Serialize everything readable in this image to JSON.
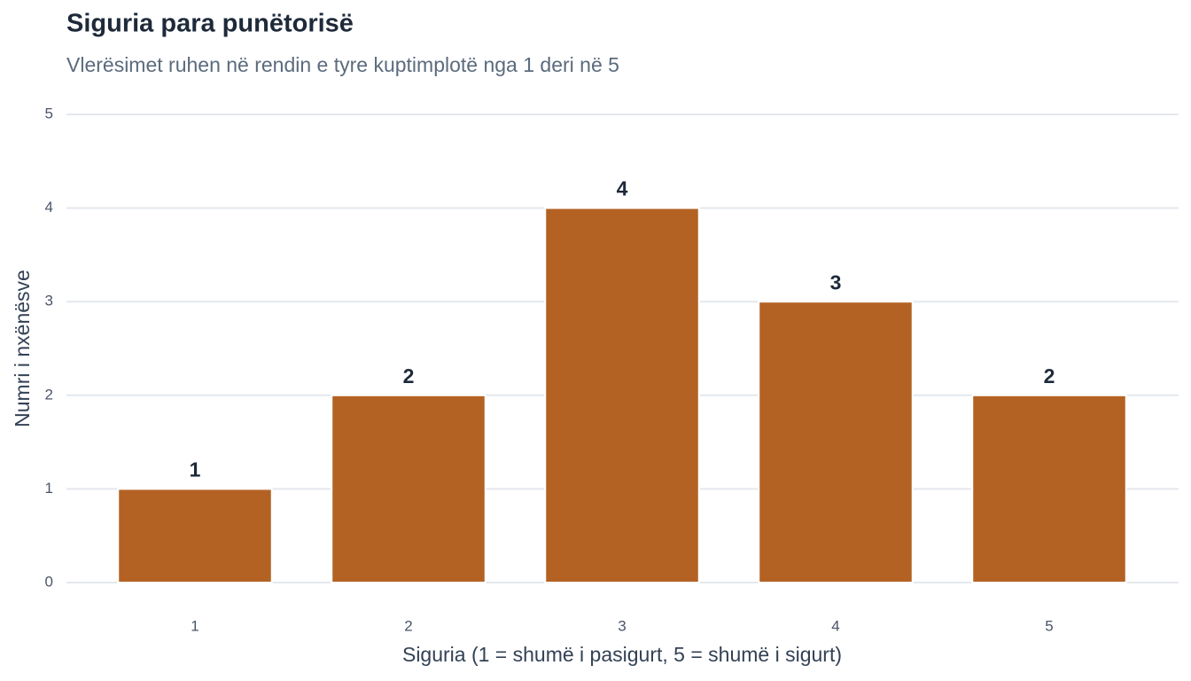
{
  "chart_data": {
    "type": "bar",
    "title": "Siguria para punëtorisë",
    "subtitle": "Vlerësimet ruhen në rendin e tyre kuptimplotë nga 1 deri në 5",
    "x_label": "Siguria (1 = shumë i pasigurt, 5 = shumë i sigurt)",
    "y_label": "Numri i nxënësve",
    "categories": [
      "1",
      "2",
      "3",
      "4",
      "5"
    ],
    "values": [
      1,
      2,
      4,
      3,
      2
    ],
    "color": "#b36223",
    "ylim": [
      0,
      5
    ],
    "yticks": [
      0,
      1,
      2,
      3,
      4,
      5
    ],
    "grid": true
  }
}
